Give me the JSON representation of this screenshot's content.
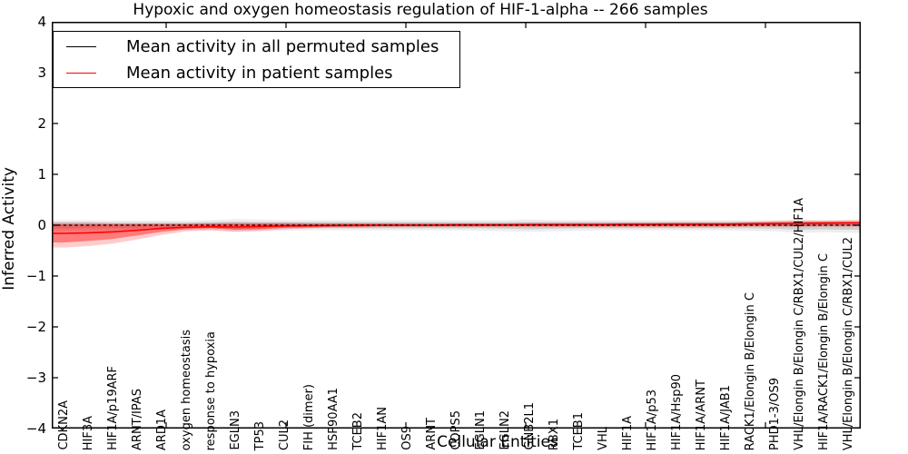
{
  "chart_data": {
    "type": "line",
    "title": "Hypoxic and oxygen homeostasis regulation of HIF-1-alpha -- 266 samples",
    "xlabel": "Cellular Entities",
    "ylabel": "Inferred Activity",
    "ylim": [
      -4,
      4
    ],
    "ytick_labels": [
      "4",
      "3",
      "2",
      "1",
      "0",
      "−1",
      "−2",
      "−3",
      "−4"
    ],
    "legend_position": "upper left",
    "grid": false,
    "categories": [
      "CDKN2A",
      "HIF3A",
      "HIF1A/p19ARF",
      "ARNT/IPAS",
      "ARD1A",
      "oxygen homeostasis",
      "response to hypoxia",
      "EGLN3",
      "TP53",
      "CUL2",
      "FIH (dimer)",
      "HSP90AA1",
      "TCEB2",
      "HIF1AN",
      "OS9",
      "ARNT",
      "COPS5",
      "EGLN1",
      "EGLN2",
      "GNB2L1",
      "RBX1",
      "TCEB1",
      "VHL",
      "HIF1A",
      "HIF1A/p53",
      "HIF1A/Hsp90",
      "HIF1A/ARNT",
      "HIF1A/JAB1",
      "RACK1/Elongin B/Elongin C",
      "PHD1-3/OS9",
      "VHL/Elongin B/Elongin C/RBX1/CUL2/HIF1A",
      "HIF1A/RACK1/Elongin B/Elongin C",
      "VHL/Elongin B/Elongin C/RBX1/CUL2"
    ],
    "series": [
      {
        "name": "Mean activity in all permuted samples",
        "color": "#000000",
        "style": "dashed",
        "values": [
          0,
          0,
          0,
          0,
          0,
          0,
          0,
          0,
          0,
          0,
          0,
          0,
          0,
          0,
          0,
          0,
          0,
          0,
          0,
          0,
          0,
          0,
          0,
          0,
          0,
          0,
          0,
          0,
          0,
          0,
          0,
          0,
          0
        ]
      },
      {
        "name": "Mean activity in patient samples",
        "color": "#ff0000",
        "style": "solid",
        "values": [
          -0.16,
          -0.15,
          -0.13,
          -0.1,
          -0.06,
          -0.04,
          -0.03,
          -0.035,
          -0.025,
          -0.015,
          -0.01,
          -0.005,
          0,
          0,
          0,
          0,
          0.005,
          0.005,
          0.005,
          0.01,
          0.01,
          0.01,
          0.01,
          0.015,
          0.015,
          0.02,
          0.02,
          0.02,
          0.025,
          0.03,
          0.035,
          0.04,
          0.045
        ]
      }
    ],
    "bands": [
      {
        "name": "permuted-range-outer",
        "color": "#000000",
        "opacity": 0.07,
        "low": [
          -0.12,
          -0.11,
          -0.1,
          -0.1,
          -0.09,
          -0.09,
          -0.1,
          -0.13,
          -0.12,
          -0.11,
          -0.1,
          -0.1,
          -0.1,
          -0.1,
          -0.1,
          -0.1,
          -0.1,
          -0.11,
          -0.12,
          -0.13,
          -0.12,
          -0.11,
          -0.1,
          -0.1,
          -0.1,
          -0.1,
          -0.1,
          -0.1,
          -0.11,
          -0.12,
          -0.15,
          -0.14,
          -0.15
        ],
        "high": [
          0.1,
          0.1,
          0.09,
          0.09,
          0.09,
          0.09,
          0.1,
          0.12,
          0.11,
          0.1,
          0.1,
          0.1,
          0.1,
          0.1,
          0.1,
          0.1,
          0.1,
          0.1,
          0.1,
          0.11,
          0.1,
          0.1,
          0.1,
          0.1,
          0.1,
          0.1,
          0.1,
          0.1,
          0.1,
          0.1,
          0.11,
          0.1,
          0.1
        ]
      },
      {
        "name": "permuted-range-inner",
        "color": "#000000",
        "opacity": 0.12,
        "low": [
          -0.07,
          -0.06,
          -0.06,
          -0.06,
          -0.05,
          -0.05,
          -0.06,
          -0.08,
          -0.07,
          -0.06,
          -0.06,
          -0.06,
          -0.06,
          -0.06,
          -0.06,
          -0.06,
          -0.06,
          -0.06,
          -0.07,
          -0.08,
          -0.07,
          -0.06,
          -0.06,
          -0.06,
          -0.06,
          -0.06,
          -0.06,
          -0.06,
          -0.06,
          -0.07,
          -0.09,
          -0.08,
          -0.09
        ],
        "high": [
          0.06,
          0.06,
          0.05,
          0.05,
          0.05,
          0.05,
          0.06,
          0.07,
          0.06,
          0.06,
          0.06,
          0.06,
          0.06,
          0.06,
          0.06,
          0.06,
          0.06,
          0.06,
          0.06,
          0.06,
          0.06,
          0.06,
          0.06,
          0.06,
          0.06,
          0.06,
          0.06,
          0.06,
          0.06,
          0.06,
          0.07,
          0.06,
          0.06
        ]
      },
      {
        "name": "patient-range-outer",
        "color": "#ff0000",
        "opacity": 0.2,
        "low": [
          -0.44,
          -0.41,
          -0.36,
          -0.28,
          -0.19,
          -0.12,
          -0.1,
          -0.13,
          -0.11,
          -0.08,
          -0.06,
          -0.05,
          -0.05,
          -0.04,
          -0.04,
          -0.04,
          -0.04,
          -0.04,
          -0.04,
          -0.04,
          -0.04,
          -0.04,
          -0.04,
          -0.04,
          -0.04,
          -0.04,
          -0.04,
          -0.04,
          -0.03,
          -0.03,
          -0.04,
          -0.03,
          -0.03
        ],
        "high": [
          0.05,
          0.05,
          0.04,
          0.04,
          0.04,
          0.04,
          0.04,
          0.05,
          0.05,
          0.05,
          0.04,
          0.04,
          0.04,
          0.04,
          0.04,
          0.04,
          0.04,
          0.04,
          0.04,
          0.05,
          0.05,
          0.05,
          0.05,
          0.05,
          0.05,
          0.06,
          0.06,
          0.06,
          0.07,
          0.08,
          0.09,
          0.09,
          0.1
        ]
      },
      {
        "name": "patient-range-inner",
        "color": "#ff0000",
        "opacity": 0.4,
        "low": [
          -0.34,
          -0.31,
          -0.27,
          -0.2,
          -0.13,
          -0.08,
          -0.06,
          -0.09,
          -0.08,
          -0.05,
          -0.04,
          -0.03,
          -0.03,
          -0.02,
          -0.02,
          -0.02,
          -0.02,
          -0.02,
          -0.02,
          -0.02,
          -0.02,
          -0.02,
          -0.02,
          -0.02,
          -0.02,
          -0.02,
          -0.02,
          -0.02,
          -0.01,
          -0.01,
          -0.02,
          -0.01,
          -0.01
        ],
        "high": [
          0.02,
          0.02,
          0.02,
          0.02,
          0.02,
          0.02,
          0.03,
          0.03,
          0.03,
          0.03,
          0.03,
          0.03,
          0.03,
          0.03,
          0.03,
          0.03,
          0.03,
          0.03,
          0.03,
          0.03,
          0.03,
          0.03,
          0.03,
          0.04,
          0.04,
          0.04,
          0.04,
          0.04,
          0.05,
          0.06,
          0.06,
          0.07,
          0.07
        ]
      }
    ]
  }
}
